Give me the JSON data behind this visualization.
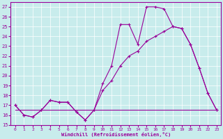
{
  "xlabel": "Windchill (Refroidissement éolien,°C)",
  "xlim": [
    -0.5,
    23.5
  ],
  "ylim": [
    15,
    27.5
  ],
  "yticks": [
    15,
    16,
    17,
    18,
    19,
    20,
    21,
    22,
    23,
    24,
    25,
    26,
    27
  ],
  "xticks": [
    0,
    1,
    2,
    3,
    4,
    5,
    6,
    7,
    8,
    9,
    10,
    11,
    12,
    13,
    14,
    15,
    16,
    17,
    18,
    19,
    20,
    21,
    22,
    23
  ],
  "bg_color": "#c8ecec",
  "grid_color": "#ffffff",
  "line_color": "#990099",
  "line1_x": [
    0,
    1,
    2,
    3,
    4,
    5,
    6,
    7,
    8,
    9,
    10,
    11,
    12,
    13,
    14,
    15,
    16,
    17,
    18,
    19,
    20,
    21,
    22,
    23
  ],
  "line1_y": [
    17.0,
    16.0,
    15.8,
    16.5,
    17.5,
    17.3,
    17.3,
    16.3,
    15.5,
    16.5,
    19.2,
    21.0,
    25.2,
    25.2,
    23.2,
    27.0,
    27.0,
    26.8,
    25.0,
    24.8,
    23.2,
    20.8,
    18.2,
    16.5
  ],
  "line2_x": [
    0,
    1,
    2,
    3,
    4,
    5,
    6,
    7,
    8,
    9,
    10,
    11,
    12,
    13,
    14,
    15,
    16,
    17,
    18,
    19,
    20,
    21,
    22,
    23
  ],
  "line2_y": [
    17.0,
    16.0,
    15.8,
    16.5,
    17.5,
    17.3,
    17.3,
    16.3,
    15.5,
    16.5,
    18.5,
    19.5,
    21.0,
    22.0,
    22.5,
    23.5,
    24.0,
    24.5,
    25.0,
    24.8,
    23.2,
    20.8,
    18.2,
    16.5
  ],
  "line3_x": [
    0,
    1,
    2,
    3,
    4,
    5,
    6,
    7,
    8,
    9,
    10,
    11,
    12,
    13,
    14,
    15,
    16,
    17,
    18,
    19,
    20,
    21,
    22,
    23
  ],
  "line3_y": [
    16.5,
    16.5,
    16.5,
    16.5,
    16.5,
    16.5,
    16.5,
    16.5,
    16.5,
    16.5,
    16.5,
    16.5,
    16.5,
    16.5,
    16.5,
    16.5,
    16.5,
    16.5,
    16.5,
    16.5,
    16.5,
    16.5,
    16.5,
    16.5
  ]
}
